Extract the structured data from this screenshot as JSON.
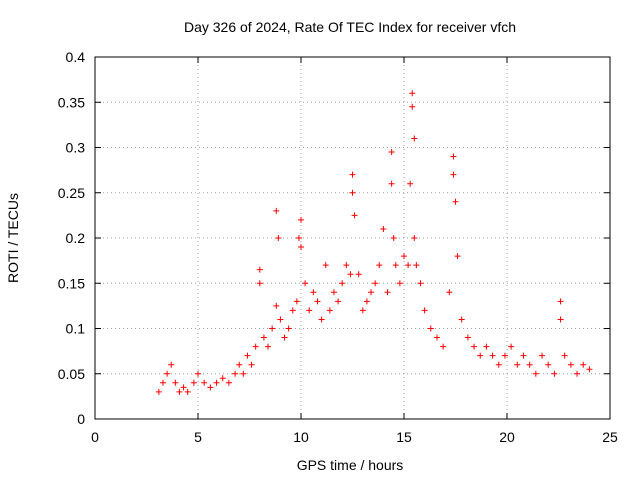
{
  "chart_data": {
    "type": "scatter",
    "title": "Day 326 of 2024, Rate Of TEC Index for receiver vfch",
    "xlabel": "GPS time / hours",
    "ylabel": "ROTI / TECUs",
    "xlim": [
      0,
      25
    ],
    "ylim": [
      0,
      0.4
    ],
    "xticks": [
      0,
      5,
      10,
      15,
      20,
      25
    ],
    "xtick_labels": [
      "0",
      "5",
      "10",
      "15",
      "20",
      "25"
    ],
    "yticks": [
      0,
      0.05,
      0.1,
      0.15,
      0.2,
      0.25,
      0.3,
      0.35,
      0.4
    ],
    "ytick_labels": [
      "0",
      "0.05",
      "0.1",
      "0.15",
      "0.2",
      "0.25",
      "0.3",
      "0.35",
      "0.4"
    ],
    "grid": true,
    "marker": "+",
    "color": "#ff0000",
    "series": [
      {
        "name": "ROTI",
        "x": [
          3.1,
          3.3,
          3.5,
          3.7,
          3.9,
          4.1,
          4.3,
          4.5,
          4.8,
          5.0,
          5.3,
          5.6,
          5.9,
          6.2,
          6.5,
          6.8,
          7.0,
          7.2,
          7.4,
          7.6,
          7.8,
          8.0,
          8.0,
          8.2,
          8.4,
          8.6,
          8.8,
          8.8,
          8.9,
          9.0,
          9.2,
          9.4,
          9.6,
          9.8,
          9.9,
          10.0,
          10.0,
          10.2,
          10.4,
          10.6,
          10.8,
          11.0,
          11.2,
          11.4,
          11.6,
          11.8,
          12.0,
          12.2,
          12.4,
          12.5,
          12.5,
          12.6,
          12.8,
          13.0,
          13.2,
          13.4,
          13.6,
          13.8,
          14.0,
          14.2,
          14.4,
          14.4,
          14.5,
          14.6,
          14.8,
          15.0,
          15.2,
          15.3,
          15.4,
          15.4,
          15.5,
          15.5,
          15.6,
          15.8,
          16.0,
          16.3,
          16.6,
          16.9,
          17.2,
          17.4,
          17.4,
          17.5,
          17.6,
          17.8,
          18.1,
          18.4,
          18.7,
          19.0,
          19.3,
          19.6,
          19.9,
          20.2,
          20.5,
          20.8,
          21.1,
          21.4,
          21.7,
          22.0,
          22.3,
          22.6,
          22.6,
          22.8,
          23.1,
          23.4,
          23.7,
          24.0
        ],
        "y": [
          0.03,
          0.04,
          0.05,
          0.06,
          0.04,
          0.03,
          0.035,
          0.03,
          0.04,
          0.05,
          0.04,
          0.035,
          0.04,
          0.045,
          0.04,
          0.05,
          0.06,
          0.05,
          0.07,
          0.06,
          0.08,
          0.165,
          0.15,
          0.09,
          0.08,
          0.1,
          0.125,
          0.23,
          0.2,
          0.11,
          0.09,
          0.1,
          0.12,
          0.13,
          0.2,
          0.22,
          0.19,
          0.15,
          0.12,
          0.14,
          0.13,
          0.11,
          0.17,
          0.12,
          0.14,
          0.13,
          0.15,
          0.17,
          0.16,
          0.27,
          0.25,
          0.225,
          0.16,
          0.12,
          0.13,
          0.14,
          0.15,
          0.17,
          0.21,
          0.14,
          0.26,
          0.295,
          0.2,
          0.17,
          0.15,
          0.18,
          0.17,
          0.26,
          0.36,
          0.345,
          0.31,
          0.2,
          0.17,
          0.15,
          0.12,
          0.1,
          0.09,
          0.08,
          0.14,
          0.29,
          0.27,
          0.24,
          0.18,
          0.11,
          0.09,
          0.08,
          0.07,
          0.08,
          0.07,
          0.06,
          0.07,
          0.08,
          0.06,
          0.07,
          0.06,
          0.05,
          0.07,
          0.06,
          0.05,
          0.13,
          0.11,
          0.07,
          0.06,
          0.05,
          0.06,
          0.055
        ]
      }
    ]
  }
}
